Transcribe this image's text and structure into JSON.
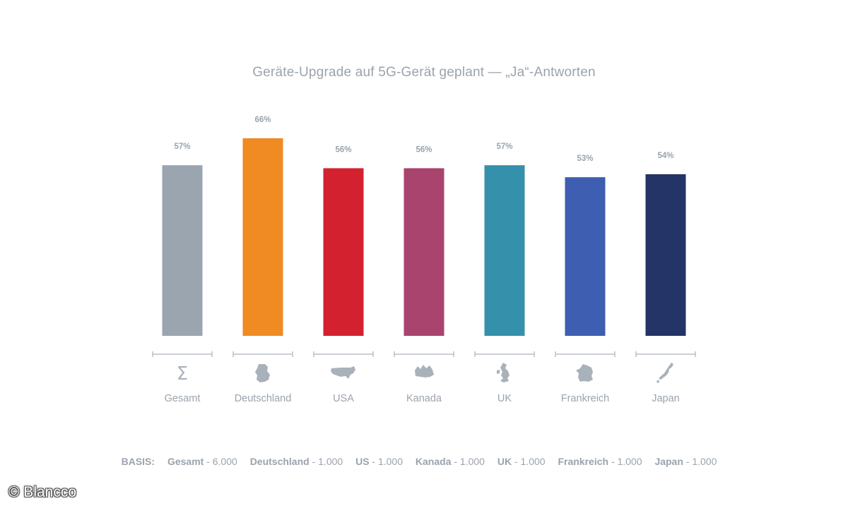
{
  "chart_data": {
    "type": "bar",
    "title": "Geräte-Upgrade auf 5G-Gerät geplant — „Ja“-Antworten",
    "categories": [
      "Gesamt",
      "Deutschland",
      "USA",
      "Kanada",
      "UK",
      "Frankreich",
      "Japan"
    ],
    "values": [
      57,
      66,
      56,
      56,
      57,
      53,
      54
    ],
    "value_labels": [
      "57%",
      "66%",
      "56%",
      "56%",
      "57%",
      "53%",
      "54%"
    ],
    "unit": "%",
    "ylim": [
      0,
      66
    ],
    "grid": false,
    "legend": "none",
    "colors": [
      "#9aa5b0",
      "#f08a22",
      "#d3212f",
      "#a8446e",
      "#3591ab",
      "#3d5eb1",
      "#243466"
    ],
    "icons": [
      "sigma-icon",
      "germany-map-icon",
      "usa-map-icon",
      "canada-map-icon",
      "uk-map-icon",
      "france-map-icon",
      "japan-map-icon"
    ]
  },
  "basis": {
    "label": "BASIS:",
    "items": [
      {
        "name": "Gesamt",
        "value": "- 6.000"
      },
      {
        "name": "Deutschland",
        "value": "- 1.000"
      },
      {
        "name": "US",
        "value": "- 1.000"
      },
      {
        "name": "Kanada",
        "value": "- 1.000"
      },
      {
        "name": "UK",
        "value": "- 1.000"
      },
      {
        "name": "Frankreich",
        "value": "- 1.000"
      },
      {
        "name": "Japan",
        "value": "- 1.000"
      }
    ]
  },
  "copyright": "© Blancco",
  "colors": {
    "text_muted": "#9aa3ad",
    "axis_line": "#b9c0c8",
    "icon": "#a9b1ba"
  }
}
